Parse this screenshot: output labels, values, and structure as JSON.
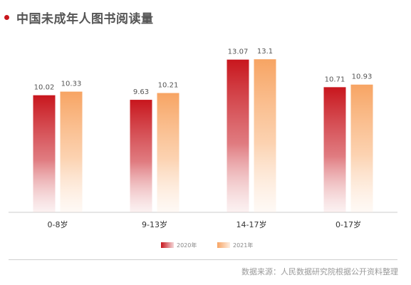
{
  "title": "中国未成年人图书阅读量",
  "source": "数据来源：人民数据研究院根据公开资料整理",
  "colors": {
    "accent": "#c8161d",
    "series_2020": "#c8161d",
    "series_2021": "#f7a463"
  },
  "chart_data": {
    "type": "bar",
    "title": "中国未成年人图书阅读量",
    "xlabel": "",
    "ylabel": "",
    "ylim": [
      0,
      14
    ],
    "grid": false,
    "legend": "bottom-center",
    "categories": [
      "0-8岁",
      "9-13岁",
      "14-17岁",
      "0-17岁"
    ],
    "series": [
      {
        "name": "2020年",
        "values": [
          10.02,
          9.63,
          13.07,
          10.71
        ],
        "labels": [
          "10.02",
          "9.63",
          "13.07",
          "10.71"
        ]
      },
      {
        "name": "2021年",
        "values": [
          10.33,
          10.21,
          13.1,
          10.93
        ],
        "labels": [
          "10.33",
          "10.21",
          "13.1",
          "10.93"
        ]
      }
    ]
  }
}
